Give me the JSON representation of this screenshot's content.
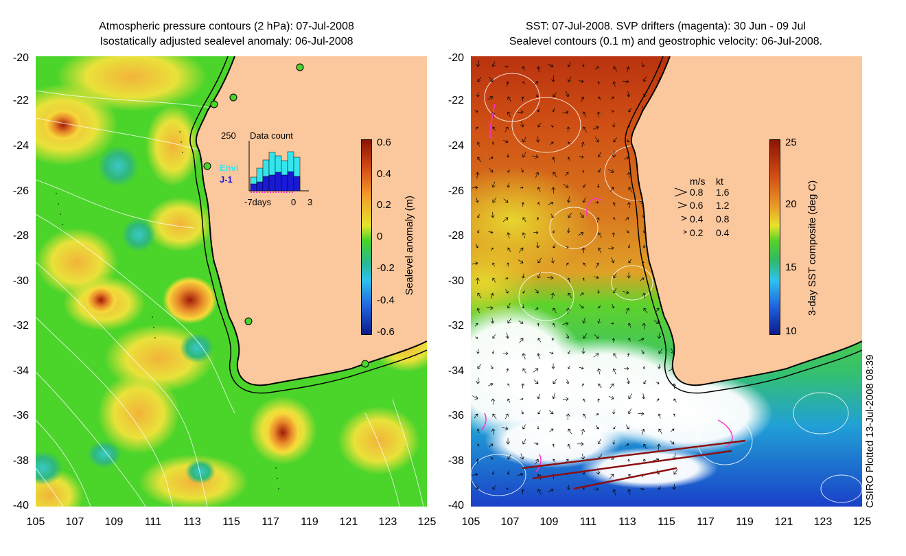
{
  "left_panel": {
    "title_line1": "Atmospheric pressure contours (2 hPa): 07-Jul-2008",
    "title_line2": "Isostatically adjusted sealevel anomaly: 06-Jul-2008",
    "y_ticks": [
      "-20",
      "-22",
      "-24",
      "-26",
      "-28",
      "-30",
      "-32",
      "-34",
      "-36",
      "-38",
      "-40"
    ],
    "x_ticks": [
      "105",
      "107",
      "109",
      "111",
      "113",
      "115",
      "117",
      "119",
      "121",
      "123",
      "125"
    ],
    "colorbar": {
      "title": "Sealevel anomaly (m)",
      "labels": [
        "0.6",
        "0.4",
        "0.2",
        "0",
        "-0.2",
        "-0.4",
        "-0.6"
      ]
    },
    "inset": {
      "y_label": "250",
      "title": "Data count",
      "series": [
        "Envi",
        "J-1"
      ],
      "series_colors": [
        "#33e6ee",
        "#1a1ad6"
      ],
      "x_labels": [
        "-7days",
        "0",
        "3"
      ]
    }
  },
  "right_panel": {
    "title_line1": "SST: 07-Jul-2008. SVP drifters (magenta): 30 Jun - 09 Jul",
    "title_line2": "Sealevel contours (0.1 m) and geostrophic velocity: 06-Jul-2008.",
    "y_ticks": [
      "-20",
      "-22",
      "-24",
      "-26",
      "-28",
      "-30",
      "-32",
      "-34",
      "-36",
      "-38",
      "-40"
    ],
    "x_ticks": [
      "105",
      "107",
      "109",
      "111",
      "113",
      "115",
      "117",
      "119",
      "121",
      "123",
      "125"
    ],
    "colorbar": {
      "title": "3-day SST composite (deg C)",
      "labels": [
        "25",
        "20",
        "15",
        "10"
      ]
    },
    "velocity_legend": {
      "header_ms": "m/s",
      "header_kt": "kt",
      "rows": [
        {
          "ms": "0.8",
          "kt": "1.6"
        },
        {
          "ms": "0.6",
          "kt": "1.2"
        },
        {
          "ms": "0.4",
          "kt": "0.8"
        },
        {
          "ms": "0.2",
          "kt": "0.4"
        }
      ]
    }
  },
  "credit": "CSIRO Plotted 13-Jul-2008 08:39",
  "colors": {
    "land": "#fbc79d",
    "sla_green": "#3fd221",
    "sla_high": "#b5260c",
    "sst_warm": "#c8501a",
    "sst_cool": "#1d4fd6"
  }
}
